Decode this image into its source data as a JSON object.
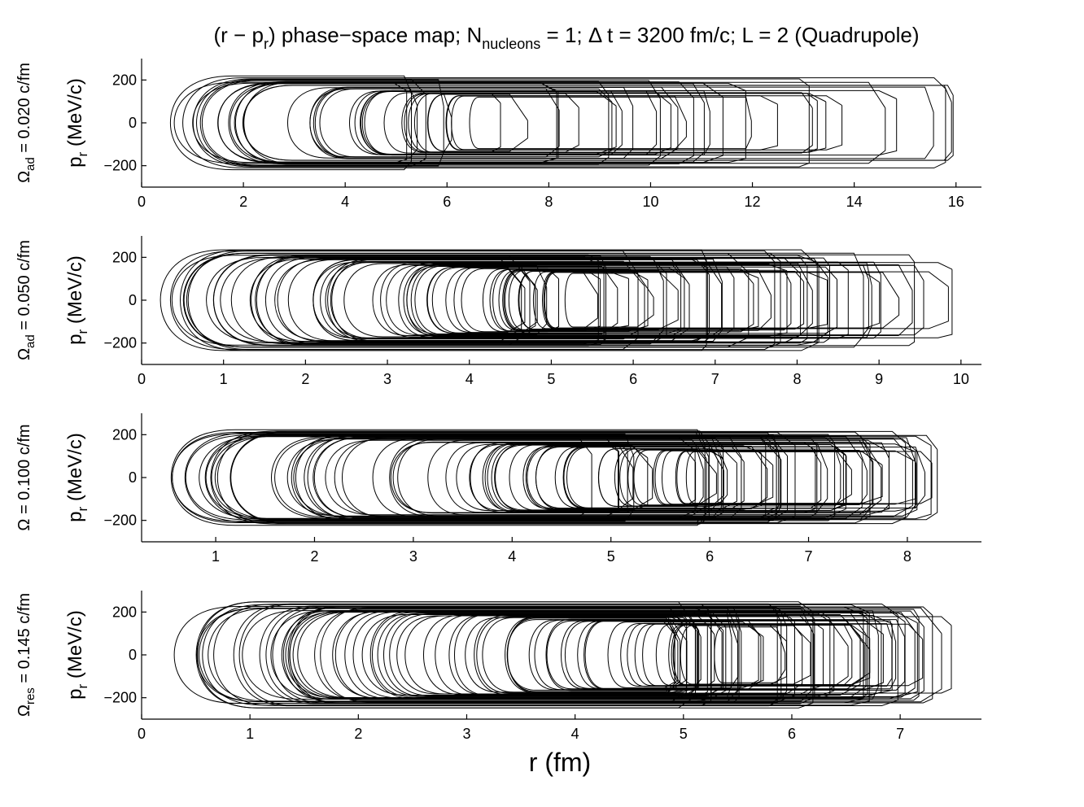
{
  "figure": {
    "title_parts": [
      "(r − p",
      "r",
      ") phase−space map; N",
      "nucleons",
      " = 1; Δ t = 3200 fm/c; L = 2 (Quadrupole)"
    ],
    "xlabel": "r (fm)",
    "ylabel_parts": [
      "p",
      "r",
      " (MeV/c)"
    ]
  },
  "chart_data": [
    {
      "type": "line",
      "row_label_parts": [
        "Ω",
        "ad",
        " = 0.020 c/fm"
      ],
      "xlim": [
        0,
        16.5
      ],
      "ylim": [
        -300,
        300
      ],
      "xticks": [
        0,
        2,
        4,
        6,
        8,
        10,
        12,
        14,
        16
      ],
      "xtick_labels": [
        "0",
        "2",
        "4",
        "6",
        "8",
        "10",
        "12",
        "14",
        "16"
      ],
      "yticks": [
        200,
        0,
        -200
      ],
      "ytick_labels": [
        "200",
        "0",
        "−200"
      ],
      "r_inner_range": [
        0.2,
        6.6
      ],
      "r_outer_range": [
        5.2,
        16.0
      ],
      "p_max_range": [
        60,
        225
      ],
      "n_loops": 40,
      "seed": 11
    },
    {
      "type": "line",
      "row_label_parts": [
        "Ω",
        "ad",
        " = 0.050 c/fm"
      ],
      "xlim": [
        0,
        10.25
      ],
      "ylim": [
        -300,
        300
      ],
      "xticks": [
        0,
        1,
        2,
        3,
        4,
        5,
        6,
        7,
        8,
        9,
        10
      ],
      "xtick_labels": [
        "0",
        "1",
        "2",
        "3",
        "4",
        "5",
        "6",
        "7",
        "8",
        "9",
        "10"
      ],
      "yticks": [
        200,
        0,
        -200
      ],
      "ytick_labels": [
        "200",
        "0",
        "−200"
      ],
      "r_inner_range": [
        0.15,
        5.2
      ],
      "r_outer_range": [
        4.4,
        9.9
      ],
      "p_max_range": [
        60,
        245
      ],
      "n_loops": 60,
      "seed": 23
    },
    {
      "type": "line",
      "row_label_parts": [
        "Ω",
        "",
        " = 0.100 c/fm"
      ],
      "xlim": [
        0.25,
        8.75
      ],
      "ylim": [
        -300,
        300
      ],
      "xticks": [
        1,
        2,
        3,
        4,
        5,
        6,
        7,
        8
      ],
      "xtick_labels": [
        "1",
        "2",
        "3",
        "4",
        "5",
        "6",
        "7",
        "8"
      ],
      "yticks": [
        200,
        0,
        -200
      ],
      "ytick_labels": [
        "200",
        "0",
        "−200"
      ],
      "r_inner_range": [
        0.45,
        5.8
      ],
      "r_outer_range": [
        4.8,
        8.4
      ],
      "p_max_range": [
        60,
        230
      ],
      "n_loops": 65,
      "seed": 37
    },
    {
      "type": "line",
      "row_label_parts": [
        "Ω",
        "res",
        " = 0.145 c/fm"
      ],
      "xlim": [
        0,
        7.75
      ],
      "ylim": [
        -300,
        300
      ],
      "xticks": [
        0,
        1,
        2,
        3,
        4,
        5,
        6,
        7
      ],
      "xtick_labels": [
        "0",
        "1",
        "2",
        "3",
        "4",
        "5",
        "6",
        "7"
      ],
      "yticks": [
        200,
        0,
        -200
      ],
      "ytick_labels": [
        "200",
        "0",
        "−200"
      ],
      "r_inner_range": [
        0.05,
        5.3
      ],
      "r_outer_range": [
        4.9,
        7.5
      ],
      "p_max_range": [
        60,
        260
      ],
      "n_loops": 70,
      "seed": 53
    }
  ]
}
